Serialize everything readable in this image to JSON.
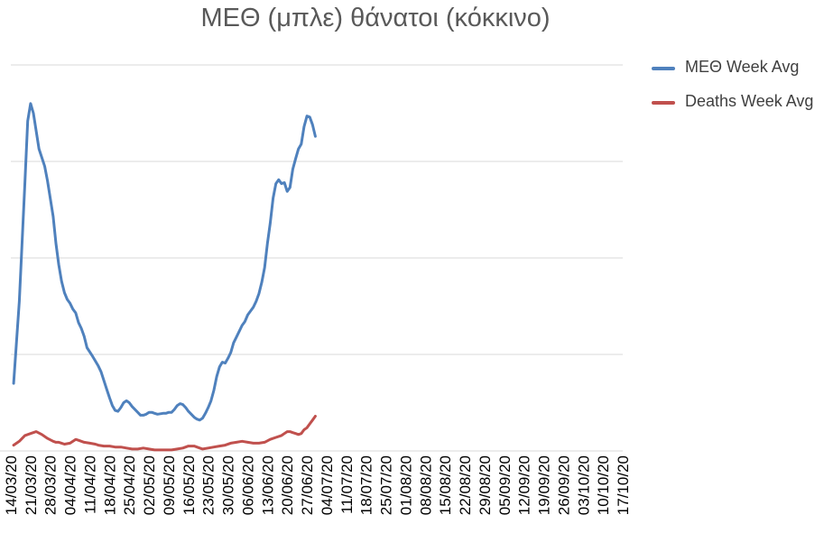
{
  "chart_data": {
    "type": "line",
    "title": "ΜΕΘ (μπλε) θάνατοι (κόκκινο)",
    "xlabel": "",
    "ylabel": "",
    "x_ticks": [
      "14/03/20",
      "21/03/20",
      "28/03/20",
      "04/04/20",
      "11/04/20",
      "18/04/20",
      "25/04/20",
      "02/05/20",
      "09/05/20",
      "16/05/20",
      "23/05/20",
      "30/05/20",
      "06/06/20",
      "13/06/20",
      "20/06/20",
      "27/06/20",
      "04/07/20",
      "11/07/20",
      "18/07/20",
      "25/07/20",
      "01/08/20",
      "08/08/20",
      "15/08/20",
      "22/08/20",
      "29/08/20",
      "05/09/20",
      "12/09/20",
      "19/09/20",
      "26/09/20",
      "03/10/20",
      "10/10/20",
      "17/10/20"
    ],
    "ylim": [
      0,
      4
    ],
    "grid": true,
    "legend_position": "right",
    "series": [
      {
        "name": "ΜΕΘ Week Avg",
        "color": "#4f81bd",
        "points": [
          [
            1,
            0.7
          ],
          [
            3,
            1.55
          ],
          [
            5,
            2.78
          ],
          [
            6,
            3.42
          ],
          [
            7,
            3.6
          ],
          [
            8,
            3.5
          ],
          [
            10,
            3.13
          ],
          [
            12,
            2.95
          ],
          [
            13,
            2.8
          ],
          [
            15,
            2.43
          ],
          [
            16,
            2.15
          ],
          [
            17,
            1.93
          ],
          [
            18,
            1.76
          ],
          [
            19,
            1.64
          ],
          [
            20,
            1.57
          ],
          [
            21,
            1.53
          ],
          [
            22,
            1.47
          ],
          [
            23,
            1.43
          ],
          [
            24,
            1.33
          ],
          [
            25,
            1.27
          ],
          [
            26,
            1.19
          ],
          [
            27,
            1.07
          ],
          [
            29,
            0.98
          ],
          [
            31,
            0.88
          ],
          [
            32,
            0.82
          ],
          [
            33,
            0.73
          ],
          [
            34,
            0.64
          ],
          [
            35,
            0.55
          ],
          [
            36,
            0.47
          ],
          [
            37,
            0.42
          ],
          [
            38,
            0.41
          ],
          [
            39,
            0.45
          ],
          [
            40,
            0.5
          ],
          [
            41,
            0.52
          ],
          [
            42,
            0.5
          ],
          [
            43,
            0.46
          ],
          [
            45,
            0.4
          ],
          [
            46,
            0.37
          ],
          [
            47,
            0.37
          ],
          [
            48,
            0.38
          ],
          [
            49,
            0.4
          ],
          [
            50,
            0.4
          ],
          [
            51,
            0.39
          ],
          [
            52,
            0.38
          ],
          [
            54,
            0.39
          ],
          [
            55,
            0.39
          ],
          [
            56,
            0.4
          ],
          [
            57,
            0.4
          ],
          [
            58,
            0.43
          ],
          [
            59,
            0.47
          ],
          [
            60,
            0.49
          ],
          [
            61,
            0.48
          ],
          [
            62,
            0.45
          ],
          [
            63,
            0.41
          ],
          [
            65,
            0.35
          ],
          [
            66,
            0.33
          ],
          [
            67,
            0.32
          ],
          [
            68,
            0.34
          ],
          [
            69,
            0.39
          ],
          [
            70,
            0.45
          ],
          [
            71,
            0.52
          ],
          [
            72,
            0.63
          ],
          [
            73,
            0.77
          ],
          [
            74,
            0.87
          ],
          [
            75,
            0.92
          ],
          [
            76,
            0.91
          ],
          [
            77,
            0.96
          ],
          [
            78,
            1.02
          ],
          [
            79,
            1.12
          ],
          [
            80,
            1.18
          ],
          [
            81,
            1.24
          ],
          [
            82,
            1.3
          ],
          [
            83,
            1.34
          ],
          [
            84,
            1.41
          ],
          [
            85,
            1.45
          ],
          [
            86,
            1.49
          ],
          [
            87,
            1.55
          ],
          [
            88,
            1.63
          ],
          [
            89,
            1.75
          ],
          [
            90,
            1.9
          ],
          [
            91,
            2.15
          ],
          [
            92,
            2.36
          ],
          [
            93,
            2.62
          ],
          [
            94,
            2.77
          ],
          [
            95,
            2.81
          ],
          [
            96,
            2.77
          ],
          [
            97,
            2.78
          ],
          [
            98,
            2.69
          ],
          [
            99,
            2.73
          ],
          [
            100,
            2.92
          ],
          [
            101,
            3.03
          ],
          [
            102,
            3.13
          ],
          [
            103,
            3.18
          ],
          [
            104,
            3.36
          ],
          [
            105,
            3.47
          ],
          [
            106,
            3.46
          ],
          [
            107,
            3.38
          ],
          [
            108,
            3.26
          ]
        ]
      },
      {
        "name": "Deaths Week Avg",
        "color": "#c0504d",
        "points": [
          [
            1,
            0.06
          ],
          [
            3,
            0.1
          ],
          [
            5,
            0.16
          ],
          [
            7,
            0.18
          ],
          [
            9,
            0.2
          ],
          [
            11,
            0.17
          ],
          [
            13,
            0.13
          ],
          [
            15,
            0.1
          ],
          [
            16,
            0.09
          ],
          [
            17,
            0.09
          ],
          [
            18,
            0.08
          ],
          [
            19,
            0.07
          ],
          [
            21,
            0.08
          ],
          [
            23,
            0.12
          ],
          [
            24,
            0.11
          ],
          [
            26,
            0.09
          ],
          [
            28,
            0.08
          ],
          [
            30,
            0.07
          ],
          [
            31,
            0.06
          ],
          [
            33,
            0.05
          ],
          [
            35,
            0.05
          ],
          [
            37,
            0.04
          ],
          [
            39,
            0.04
          ],
          [
            41,
            0.03
          ],
          [
            43,
            0.02
          ],
          [
            45,
            0.02
          ],
          [
            47,
            0.03
          ],
          [
            49,
            0.02
          ],
          [
            51,
            0.01
          ],
          [
            53,
            0.01
          ],
          [
            55,
            0.01
          ],
          [
            57,
            0.01
          ],
          [
            59,
            0.02
          ],
          [
            61,
            0.03
          ],
          [
            63,
            0.05
          ],
          [
            64,
            0.05
          ],
          [
            65,
            0.05
          ],
          [
            66,
            0.04
          ],
          [
            67,
            0.03
          ],
          [
            68,
            0.02
          ],
          [
            70,
            0.03
          ],
          [
            72,
            0.04
          ],
          [
            74,
            0.05
          ],
          [
            76,
            0.06
          ],
          [
            78,
            0.08
          ],
          [
            80,
            0.09
          ],
          [
            82,
            0.1
          ],
          [
            84,
            0.09
          ],
          [
            86,
            0.08
          ],
          [
            88,
            0.08
          ],
          [
            90,
            0.09
          ],
          [
            92,
            0.12
          ],
          [
            94,
            0.14
          ],
          [
            96,
            0.16
          ],
          [
            97,
            0.18
          ],
          [
            98,
            0.2
          ],
          [
            99,
            0.2
          ],
          [
            100,
            0.19
          ],
          [
            101,
            0.18
          ],
          [
            102,
            0.17
          ],
          [
            103,
            0.18
          ],
          [
            104,
            0.22
          ],
          [
            105,
            0.24
          ],
          [
            106,
            0.28
          ],
          [
            107,
            0.32
          ],
          [
            108,
            0.36
          ]
        ]
      }
    ]
  }
}
